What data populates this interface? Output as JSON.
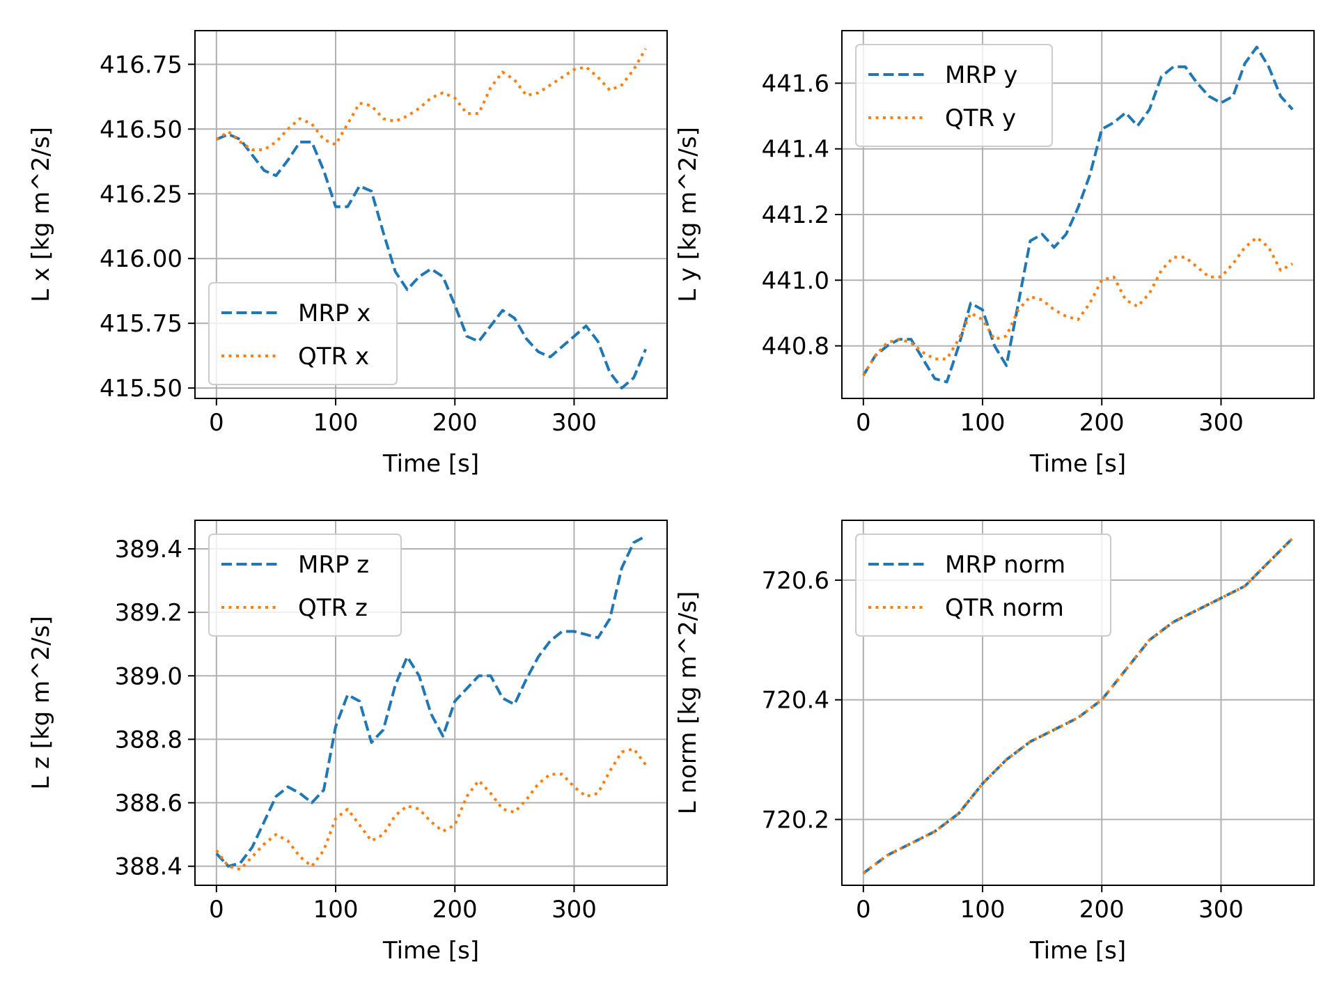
{
  "chart_data": [
    {
      "type": "line",
      "xlabel": "Time [s]",
      "ylabel": "L x [kg m^2/s]",
      "xlim": [
        -18,
        378
      ],
      "ylim": [
        415.46,
        416.88
      ],
      "xticks": [
        0,
        100,
        200,
        300
      ],
      "yticks": [
        415.5,
        415.75,
        416.0,
        416.25,
        416.5,
        416.75
      ],
      "ytick_labels": [
        "415.50",
        "415.75",
        "416.00",
        "416.25",
        "416.50",
        "416.75"
      ],
      "grid": true,
      "legend_position": "lower-left",
      "series": [
        {
          "name": "MRP x",
          "color": "#1f77b4",
          "style": "dashed",
          "x": [
            0,
            10,
            20,
            30,
            40,
            50,
            60,
            70,
            80,
            90,
            100,
            110,
            120,
            130,
            140,
            150,
            160,
            170,
            180,
            190,
            200,
            210,
            220,
            230,
            240,
            250,
            260,
            270,
            280,
            290,
            300,
            310,
            320,
            330,
            340,
            350,
            360
          ],
          "y": [
            416.46,
            416.48,
            416.46,
            416.4,
            416.34,
            416.32,
            416.38,
            416.45,
            416.45,
            416.34,
            416.2,
            416.2,
            416.28,
            416.26,
            416.1,
            415.95,
            415.88,
            415.93,
            415.96,
            415.93,
            415.82,
            415.7,
            415.68,
            415.74,
            415.8,
            415.77,
            415.69,
            415.64,
            415.62,
            415.66,
            415.7,
            415.74,
            415.68,
            415.56,
            415.5,
            415.54,
            415.65
          ]
        },
        {
          "name": "QTR x",
          "color": "#ff7f0e",
          "style": "dotted",
          "x": [
            0,
            10,
            20,
            30,
            40,
            50,
            60,
            70,
            80,
            90,
            100,
            110,
            120,
            130,
            140,
            150,
            160,
            170,
            180,
            190,
            200,
            210,
            220,
            230,
            240,
            250,
            260,
            270,
            280,
            290,
            300,
            310,
            320,
            330,
            340,
            350,
            360
          ],
          "y": [
            416.46,
            416.49,
            416.45,
            416.42,
            416.42,
            416.45,
            416.5,
            416.54,
            416.52,
            416.46,
            416.44,
            416.52,
            416.6,
            416.59,
            416.54,
            416.53,
            416.55,
            416.58,
            416.62,
            416.64,
            416.62,
            416.56,
            416.56,
            416.66,
            416.72,
            416.69,
            416.63,
            416.64,
            416.67,
            416.7,
            416.73,
            416.74,
            416.7,
            416.65,
            416.67,
            416.73,
            416.81
          ]
        }
      ]
    },
    {
      "type": "line",
      "xlabel": "Time [s]",
      "ylabel": "L y [kg m^2/s]",
      "xlim": [
        -18,
        378
      ],
      "ylim": [
        440.64,
        441.76
      ],
      "xticks": [
        0,
        100,
        200,
        300
      ],
      "yticks": [
        440.8,
        441.0,
        441.2,
        441.4,
        441.6
      ],
      "ytick_labels": [
        "440.8",
        "441.0",
        "441.2",
        "441.4",
        "441.6"
      ],
      "grid": true,
      "legend_position": "upper-left",
      "series": [
        {
          "name": "MRP y",
          "color": "#1f77b4",
          "style": "dashed",
          "x": [
            0,
            10,
            20,
            30,
            40,
            50,
            60,
            70,
            80,
            90,
            100,
            110,
            120,
            130,
            140,
            150,
            160,
            170,
            180,
            190,
            200,
            210,
            220,
            230,
            240,
            250,
            260,
            270,
            280,
            290,
            300,
            310,
            320,
            330,
            340,
            350,
            360
          ],
          "y": [
            440.71,
            440.77,
            440.8,
            440.82,
            440.82,
            440.76,
            440.7,
            440.69,
            440.8,
            440.93,
            440.91,
            440.8,
            440.74,
            440.93,
            441.12,
            441.14,
            441.1,
            441.14,
            441.22,
            441.32,
            441.46,
            441.48,
            441.51,
            441.47,
            441.52,
            441.62,
            441.65,
            441.65,
            441.6,
            441.56,
            441.54,
            441.56,
            441.66,
            441.71,
            441.65,
            441.56,
            441.52
          ]
        },
        {
          "name": "QTR y",
          "color": "#ff7f0e",
          "style": "dotted",
          "x": [
            0,
            10,
            20,
            30,
            40,
            50,
            60,
            70,
            80,
            90,
            100,
            110,
            120,
            130,
            140,
            150,
            160,
            170,
            180,
            190,
            200,
            210,
            220,
            230,
            240,
            250,
            260,
            270,
            280,
            290,
            300,
            310,
            320,
            330,
            340,
            350,
            360
          ],
          "y": [
            440.71,
            440.77,
            440.81,
            440.82,
            440.81,
            440.78,
            440.76,
            440.76,
            440.82,
            440.9,
            440.88,
            440.82,
            440.83,
            440.91,
            440.95,
            440.94,
            440.91,
            440.89,
            440.88,
            440.93,
            441.0,
            441.01,
            440.94,
            440.92,
            440.96,
            441.03,
            441.07,
            441.07,
            441.04,
            441.01,
            441.01,
            441.05,
            441.1,
            441.13,
            441.1,
            441.03,
            441.05
          ]
        }
      ]
    },
    {
      "type": "line",
      "xlabel": "Time [s]",
      "ylabel": "L z [kg m^2/s]",
      "xlim": [
        -18,
        378
      ],
      "ylim": [
        388.34,
        389.49
      ],
      "xticks": [
        0,
        100,
        200,
        300
      ],
      "yticks": [
        388.4,
        388.6,
        388.8,
        389.0,
        389.2,
        389.4
      ],
      "ytick_labels": [
        "388.4",
        "388.6",
        "388.8",
        "389.0",
        "389.2",
        "389.4"
      ],
      "grid": true,
      "legend_position": "upper-left",
      "series": [
        {
          "name": "MRP z",
          "color": "#1f77b4",
          "style": "dashed",
          "x": [
            0,
            10,
            20,
            30,
            40,
            50,
            60,
            70,
            80,
            90,
            100,
            110,
            120,
            130,
            140,
            150,
            160,
            170,
            180,
            190,
            200,
            210,
            220,
            230,
            240,
            250,
            260,
            270,
            280,
            290,
            300,
            310,
            320,
            330,
            340,
            350,
            360
          ],
          "y": [
            388.44,
            388.4,
            388.41,
            388.46,
            388.54,
            388.62,
            388.65,
            388.63,
            388.6,
            388.64,
            388.84,
            388.94,
            388.92,
            388.79,
            388.83,
            388.97,
            389.06,
            389.0,
            388.88,
            388.81,
            388.92,
            388.96,
            389.0,
            389.0,
            388.93,
            388.91,
            388.99,
            389.06,
            389.11,
            389.14,
            389.14,
            389.13,
            389.12,
            389.18,
            389.34,
            389.42,
            389.44
          ]
        },
        {
          "name": "QTR z",
          "color": "#ff7f0e",
          "style": "dotted",
          "x": [
            0,
            10,
            20,
            30,
            40,
            50,
            60,
            70,
            80,
            90,
            100,
            110,
            120,
            130,
            140,
            150,
            160,
            170,
            180,
            190,
            200,
            210,
            220,
            230,
            240,
            250,
            260,
            270,
            280,
            290,
            300,
            310,
            320,
            330,
            340,
            350,
            360
          ],
          "y": [
            388.45,
            388.4,
            388.39,
            388.43,
            388.47,
            388.5,
            388.48,
            388.43,
            388.4,
            388.45,
            388.55,
            388.58,
            388.53,
            388.48,
            388.5,
            388.56,
            388.59,
            388.58,
            388.54,
            388.51,
            388.53,
            388.62,
            388.67,
            388.63,
            388.58,
            388.57,
            388.61,
            388.66,
            388.69,
            388.69,
            388.65,
            388.62,
            388.63,
            388.7,
            388.76,
            388.77,
            388.72
          ]
        }
      ]
    },
    {
      "type": "line",
      "xlabel": "Time [s]",
      "ylabel": "L norm [kg m^2/s]",
      "xlim": [
        -18,
        378
      ],
      "ylim": [
        720.09,
        720.7
      ],
      "xticks": [
        0,
        100,
        200,
        300
      ],
      "yticks": [
        720.2,
        720.4,
        720.6
      ],
      "ytick_labels": [
        "720.2",
        "720.4",
        "720.6"
      ],
      "grid": true,
      "legend_position": "upper-left",
      "series": [
        {
          "name": "MRP norm",
          "color": "#1f77b4",
          "style": "dashed",
          "x": [
            0,
            20,
            40,
            60,
            80,
            100,
            120,
            140,
            160,
            180,
            200,
            220,
            240,
            260,
            280,
            300,
            320,
            340,
            360
          ],
          "y": [
            720.11,
            720.14,
            720.16,
            720.18,
            720.21,
            720.26,
            720.3,
            720.33,
            720.35,
            720.37,
            720.4,
            720.45,
            720.5,
            720.53,
            720.55,
            720.57,
            720.59,
            720.63,
            720.67
          ]
        },
        {
          "name": "QTR norm",
          "color": "#ff7f0e",
          "style": "dotted",
          "x": [
            0,
            20,
            40,
            60,
            80,
            100,
            120,
            140,
            160,
            180,
            200,
            220,
            240,
            260,
            280,
            300,
            320,
            340,
            360
          ],
          "y": [
            720.11,
            720.14,
            720.16,
            720.18,
            720.21,
            720.26,
            720.3,
            720.33,
            720.35,
            720.37,
            720.4,
            720.45,
            720.5,
            720.53,
            720.55,
            720.57,
            720.59,
            720.63,
            720.67
          ]
        }
      ]
    }
  ]
}
